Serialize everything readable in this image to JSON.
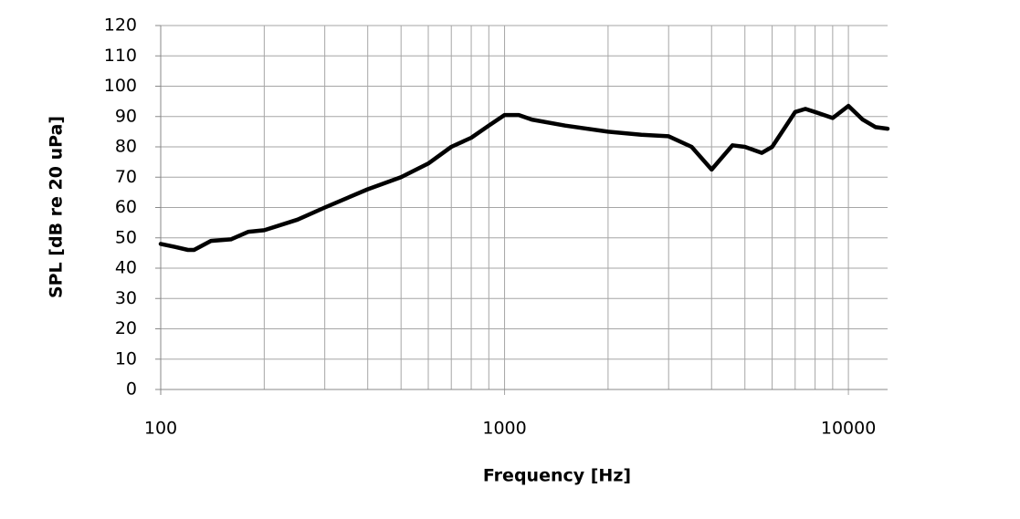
{
  "chart_data": {
    "type": "line",
    "x_label": "Frequency [Hz]",
    "y_label": "SPL [dB re 20 uPa]",
    "x": [
      100,
      110,
      120,
      125,
      140,
      160,
      180,
      200,
      250,
      300,
      400,
      500,
      600,
      700,
      800,
      900,
      1000,
      1100,
      1200,
      1500,
      2000,
      2500,
      3000,
      3500,
      4000,
      4600,
      5000,
      5600,
      6000,
      7000,
      7500,
      8000,
      9000,
      10000,
      11000,
      12000,
      13000
    ],
    "series": [
      {
        "name": "SPL",
        "color": "#000000",
        "values": [
          48,
          47,
          46,
          46,
          49,
          49.5,
          52,
          52.5,
          56,
          60,
          66,
          70,
          74.5,
          80,
          83,
          87,
          90.5,
          90.5,
          89,
          87,
          85,
          84,
          83.5,
          80,
          72.5,
          80.5,
          80,
          78,
          80,
          91.5,
          92.5,
          91.5,
          89.5,
          93.5,
          89,
          86.5,
          86
        ]
      }
    ],
    "xscale": "log",
    "xlim": [
      100,
      13000
    ],
    "xticks": [
      100,
      1000,
      10000
    ],
    "x_minor_grid": [
      200,
      300,
      400,
      500,
      600,
      700,
      800,
      900,
      2000,
      3000,
      4000,
      5000,
      6000,
      7000,
      8000,
      9000
    ],
    "ylim": [
      0,
      120
    ],
    "yticks": [
      0,
      10,
      20,
      30,
      40,
      50,
      60,
      70,
      80,
      90,
      100,
      110,
      120
    ],
    "grid": true
  }
}
